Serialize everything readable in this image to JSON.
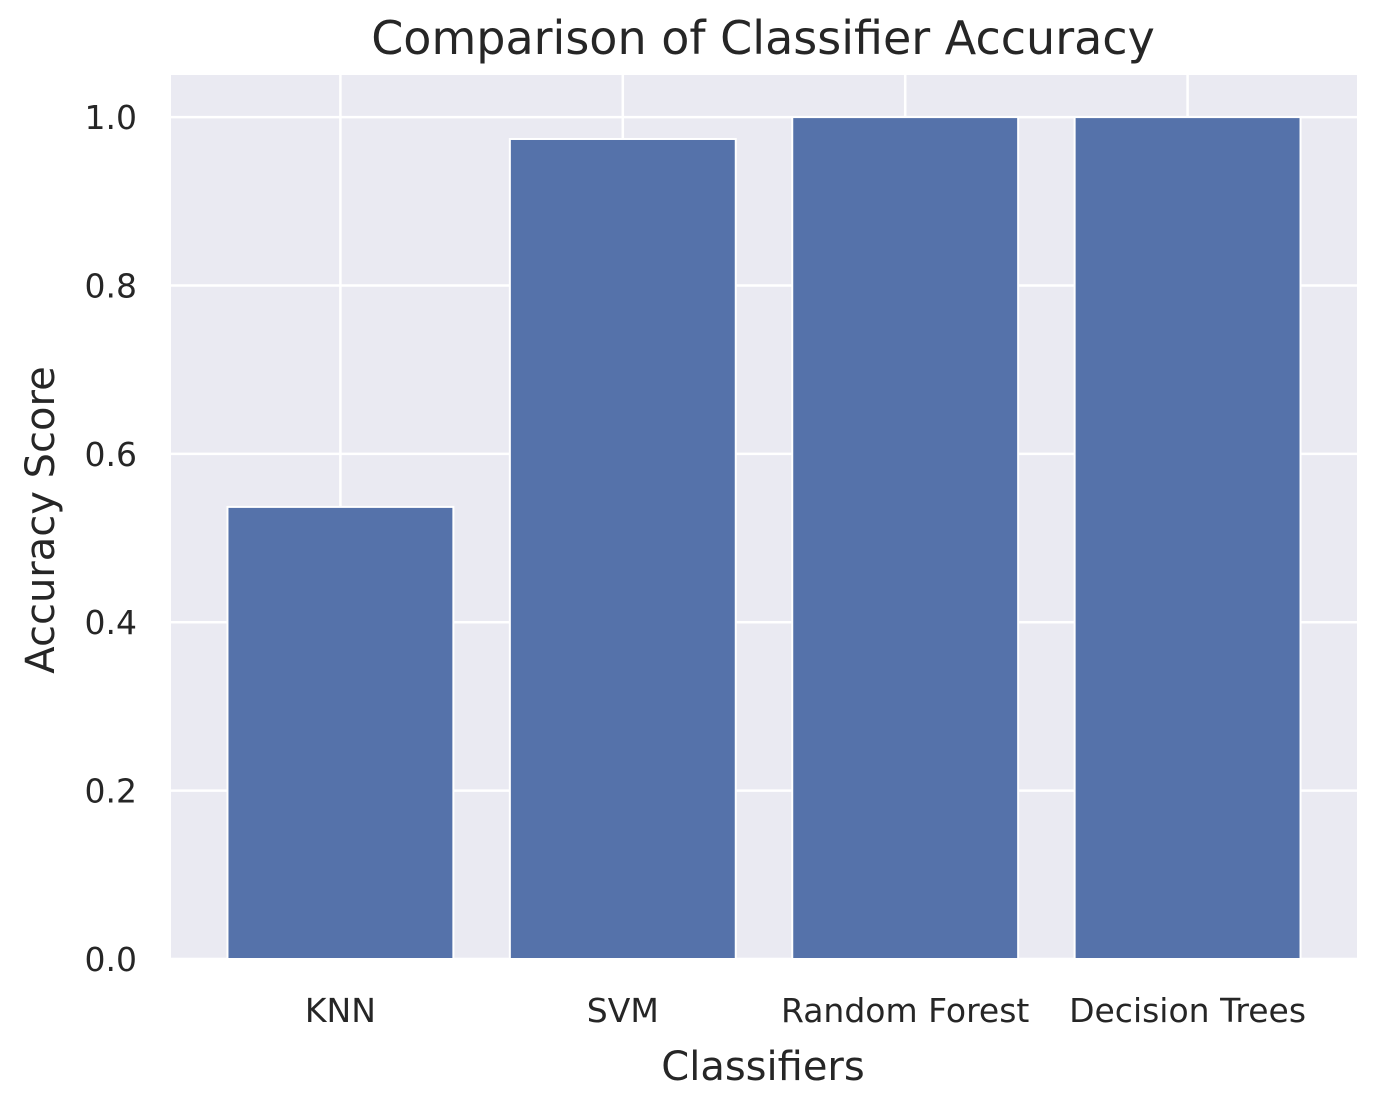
{
  "chart_data": {
    "type": "bar",
    "title": "Comparison of Classifier Accuracy",
    "xlabel": "Classifiers",
    "ylabel": "Accuracy Score",
    "categories": [
      "KNN",
      "SVM",
      "Random Forest",
      "Decision Trees"
    ],
    "values": [
      0.537,
      0.974,
      1.0,
      1.0
    ],
    "ylim": [
      0,
      1.05
    ],
    "yticks": [
      0.0,
      0.2,
      0.4,
      0.6,
      0.8,
      1.0
    ],
    "ytick_labels": [
      "0.0",
      "0.2",
      "0.4",
      "0.6",
      "0.8",
      "1.0"
    ],
    "grid": true,
    "colors": {
      "bar": "#5572aa",
      "background": "#eaeaf2",
      "grid": "#ffffff",
      "text": "#262626"
    }
  }
}
